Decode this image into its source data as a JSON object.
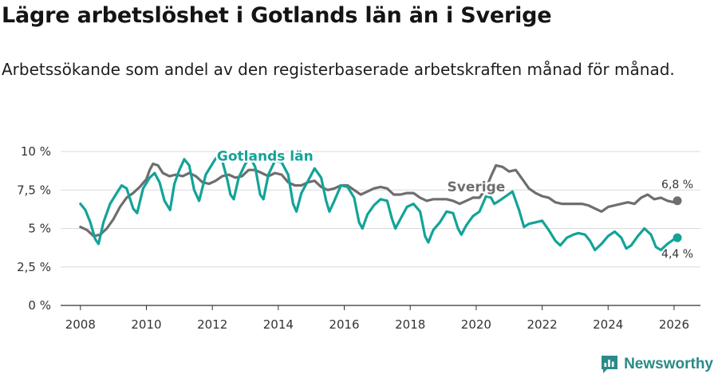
{
  "title": "Lägre arbetslöshet i Gotlands län än i Sverige",
  "subtitle": "Arbetssökande som andel av den registerbaserade arbetskraften månad för månad.",
  "brand": "Newsworthy",
  "colors": {
    "gotland": "#13a398",
    "sverige": "#6e6e6e",
    "grid": "#d9d9d9",
    "axis": "#333333"
  },
  "chart_data": {
    "type": "line",
    "title": "Lägre arbetslöshet i Gotlands län än i Sverige",
    "xlabel": "",
    "ylabel": "",
    "xlim": [
      2007.4,
      2026.8
    ],
    "ylim": [
      0,
      10
    ],
    "x_ticks": [
      2008,
      2010,
      2012,
      2014,
      2016,
      2018,
      2020,
      2022,
      2024,
      2026
    ],
    "y_ticks": [
      0,
      2.5,
      5,
      7.5,
      10
    ],
    "y_tick_labels": [
      "0 %",
      "2,5 %",
      "5 %",
      "7,5 %",
      "10 %"
    ],
    "grid": true,
    "series": [
      {
        "name": "Sverige",
        "label": "Sverige",
        "color": "#6e6e6e",
        "end_label": "6,8 %",
        "label_pos": [
          2020.0,
          7.4
        ],
        "points": [
          [
            2008.0,
            5.1
          ],
          [
            2008.2,
            4.9
          ],
          [
            2008.4,
            4.5
          ],
          [
            2008.6,
            4.6
          ],
          [
            2008.8,
            5.0
          ],
          [
            2009.0,
            5.6
          ],
          [
            2009.2,
            6.4
          ],
          [
            2009.4,
            7.0
          ],
          [
            2009.6,
            7.3
          ],
          [
            2009.8,
            7.7
          ],
          [
            2010.0,
            8.2
          ],
          [
            2010.1,
            8.8
          ],
          [
            2010.2,
            9.2
          ],
          [
            2010.35,
            9.1
          ],
          [
            2010.5,
            8.6
          ],
          [
            2010.7,
            8.4
          ],
          [
            2010.9,
            8.5
          ],
          [
            2011.1,
            8.4
          ],
          [
            2011.3,
            8.6
          ],
          [
            2011.5,
            8.4
          ],
          [
            2011.7,
            8.0
          ],
          [
            2011.9,
            7.9
          ],
          [
            2012.1,
            8.1
          ],
          [
            2012.3,
            8.4
          ],
          [
            2012.5,
            8.5
          ],
          [
            2012.7,
            8.3
          ],
          [
            2012.9,
            8.4
          ],
          [
            2013.1,
            8.8
          ],
          [
            2013.3,
            8.8
          ],
          [
            2013.5,
            8.6
          ],
          [
            2013.7,
            8.4
          ],
          [
            2013.9,
            8.6
          ],
          [
            2014.1,
            8.5
          ],
          [
            2014.3,
            8.0
          ],
          [
            2014.5,
            7.8
          ],
          [
            2014.7,
            7.8
          ],
          [
            2014.9,
            8.0
          ],
          [
            2015.1,
            8.1
          ],
          [
            2015.3,
            7.7
          ],
          [
            2015.5,
            7.5
          ],
          [
            2015.7,
            7.6
          ],
          [
            2015.9,
            7.8
          ],
          [
            2016.1,
            7.8
          ],
          [
            2016.3,
            7.5
          ],
          [
            2016.5,
            7.2
          ],
          [
            2016.7,
            7.4
          ],
          [
            2016.9,
            7.6
          ],
          [
            2017.1,
            7.7
          ],
          [
            2017.3,
            7.6
          ],
          [
            2017.5,
            7.2
          ],
          [
            2017.7,
            7.2
          ],
          [
            2017.9,
            7.3
          ],
          [
            2018.1,
            7.3
          ],
          [
            2018.3,
            7.0
          ],
          [
            2018.5,
            6.8
          ],
          [
            2018.7,
            6.9
          ],
          [
            2018.9,
            6.9
          ],
          [
            2019.1,
            6.9
          ],
          [
            2019.3,
            6.8
          ],
          [
            2019.5,
            6.6
          ],
          [
            2019.7,
            6.8
          ],
          [
            2019.9,
            7.0
          ],
          [
            2020.1,
            7.0
          ],
          [
            2020.3,
            7.6
          ],
          [
            2020.45,
            8.4
          ],
          [
            2020.6,
            9.1
          ],
          [
            2020.8,
            9.0
          ],
          [
            2021.0,
            8.7
          ],
          [
            2021.2,
            8.8
          ],
          [
            2021.4,
            8.2
          ],
          [
            2021.6,
            7.6
          ],
          [
            2021.8,
            7.3
          ],
          [
            2022.0,
            7.1
          ],
          [
            2022.2,
            7.0
          ],
          [
            2022.4,
            6.7
          ],
          [
            2022.6,
            6.6
          ],
          [
            2022.8,
            6.6
          ],
          [
            2023.0,
            6.6
          ],
          [
            2023.2,
            6.6
          ],
          [
            2023.4,
            6.5
          ],
          [
            2023.6,
            6.3
          ],
          [
            2023.8,
            6.1
          ],
          [
            2024.0,
            6.4
          ],
          [
            2024.2,
            6.5
          ],
          [
            2024.4,
            6.6
          ],
          [
            2024.6,
            6.7
          ],
          [
            2024.8,
            6.6
          ],
          [
            2025.0,
            7.0
          ],
          [
            2025.2,
            7.2
          ],
          [
            2025.4,
            6.9
          ],
          [
            2025.6,
            7.0
          ],
          [
            2025.8,
            6.8
          ],
          [
            2026.0,
            6.7
          ],
          [
            2026.1,
            6.8
          ]
        ]
      },
      {
        "name": "Gotlands län",
        "label": "Gotlands län",
        "color": "#13a398",
        "end_label": "4,4 %",
        "label_pos": [
          2013.6,
          9.4
        ],
        "points": [
          [
            2008.0,
            6.6
          ],
          [
            2008.15,
            6.2
          ],
          [
            2008.3,
            5.4
          ],
          [
            2008.45,
            4.3
          ],
          [
            2008.55,
            4.0
          ],
          [
            2008.7,
            5.4
          ],
          [
            2008.9,
            6.6
          ],
          [
            2009.1,
            7.3
          ],
          [
            2009.25,
            7.8
          ],
          [
            2009.4,
            7.6
          ],
          [
            2009.6,
            6.3
          ],
          [
            2009.72,
            6.0
          ],
          [
            2009.9,
            7.6
          ],
          [
            2010.1,
            8.3
          ],
          [
            2010.25,
            8.6
          ],
          [
            2010.4,
            8.0
          ],
          [
            2010.55,
            6.8
          ],
          [
            2010.72,
            6.2
          ],
          [
            2010.85,
            7.9
          ],
          [
            2011.0,
            8.8
          ],
          [
            2011.15,
            9.5
          ],
          [
            2011.3,
            9.1
          ],
          [
            2011.45,
            7.5
          ],
          [
            2011.6,
            6.8
          ],
          [
            2011.8,
            8.5
          ],
          [
            2012.0,
            9.2
          ],
          [
            2012.15,
            9.7
          ],
          [
            2012.3,
            9.4
          ],
          [
            2012.45,
            8.2
          ],
          [
            2012.55,
            7.2
          ],
          [
            2012.65,
            6.9
          ],
          [
            2012.8,
            8.3
          ],
          [
            2013.0,
            9.2
          ],
          [
            2013.15,
            9.6
          ],
          [
            2013.3,
            9.0
          ],
          [
            2013.45,
            7.2
          ],
          [
            2013.55,
            6.9
          ],
          [
            2013.7,
            8.5
          ],
          [
            2013.9,
            9.4
          ],
          [
            2014.1,
            9.3
          ],
          [
            2014.3,
            8.5
          ],
          [
            2014.45,
            6.6
          ],
          [
            2014.55,
            6.1
          ],
          [
            2014.7,
            7.3
          ],
          [
            2014.9,
            8.1
          ],
          [
            2015.1,
            8.9
          ],
          [
            2015.3,
            8.3
          ],
          [
            2015.45,
            6.8
          ],
          [
            2015.55,
            6.1
          ],
          [
            2015.7,
            6.8
          ],
          [
            2015.9,
            7.8
          ],
          [
            2016.1,
            7.7
          ],
          [
            2016.3,
            7.0
          ],
          [
            2016.45,
            5.4
          ],
          [
            2016.55,
            5.0
          ],
          [
            2016.7,
            5.9
          ],
          [
            2016.9,
            6.5
          ],
          [
            2017.1,
            6.9
          ],
          [
            2017.3,
            6.8
          ],
          [
            2017.45,
            5.6
          ],
          [
            2017.55,
            5.0
          ],
          [
            2017.7,
            5.6
          ],
          [
            2017.9,
            6.4
          ],
          [
            2018.1,
            6.6
          ],
          [
            2018.3,
            6.1
          ],
          [
            2018.45,
            4.5
          ],
          [
            2018.55,
            4.1
          ],
          [
            2018.7,
            4.9
          ],
          [
            2018.9,
            5.4
          ],
          [
            2019.1,
            6.1
          ],
          [
            2019.3,
            6.0
          ],
          [
            2019.45,
            5.0
          ],
          [
            2019.55,
            4.6
          ],
          [
            2019.7,
            5.2
          ],
          [
            2019.9,
            5.8
          ],
          [
            2020.1,
            6.1
          ],
          [
            2020.3,
            7.1
          ],
          [
            2020.45,
            7.0
          ],
          [
            2020.55,
            6.6
          ],
          [
            2020.7,
            6.8
          ],
          [
            2020.9,
            7.1
          ],
          [
            2021.1,
            7.4
          ],
          [
            2021.3,
            6.2
          ],
          [
            2021.45,
            5.1
          ],
          [
            2021.6,
            5.3
          ],
          [
            2021.8,
            5.4
          ],
          [
            2022.0,
            5.5
          ],
          [
            2022.2,
            4.9
          ],
          [
            2022.4,
            4.2
          ],
          [
            2022.55,
            3.9
          ],
          [
            2022.75,
            4.4
          ],
          [
            2022.95,
            4.6
          ],
          [
            2023.1,
            4.7
          ],
          [
            2023.3,
            4.6
          ],
          [
            2023.45,
            4.2
          ],
          [
            2023.6,
            3.6
          ],
          [
            2023.8,
            4.0
          ],
          [
            2024.0,
            4.5
          ],
          [
            2024.2,
            4.8
          ],
          [
            2024.4,
            4.4
          ],
          [
            2024.55,
            3.7
          ],
          [
            2024.7,
            3.9
          ],
          [
            2024.9,
            4.5
          ],
          [
            2025.1,
            5.0
          ],
          [
            2025.3,
            4.6
          ],
          [
            2025.45,
            3.8
          ],
          [
            2025.6,
            3.6
          ],
          [
            2025.8,
            4.0
          ],
          [
            2026.0,
            4.3
          ],
          [
            2026.1,
            4.4
          ]
        ]
      }
    ]
  }
}
